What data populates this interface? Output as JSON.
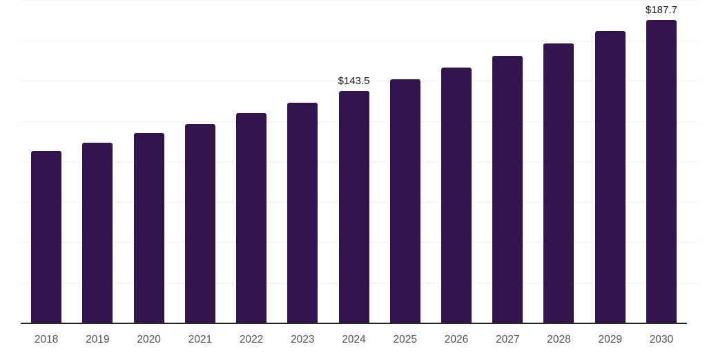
{
  "chart": {
    "background": "#ffffff",
    "bar_color": "#32154d",
    "gridline_color": "#f2f2f2",
    "axis_line_color": "#2a2a2a",
    "tick_label_color": "#515151",
    "value_label_color": "#1a1a1a"
  },
  "chart_data": {
    "type": "bar",
    "categories": [
      "2018",
      "2019",
      "2020",
      "2021",
      "2022",
      "2023",
      "2024",
      "2025",
      "2026",
      "2027",
      "2028",
      "2029",
      "2030"
    ],
    "values": [
      106.4,
      111.6,
      117.7,
      123.2,
      129.8,
      136.4,
      143.5,
      150.9,
      158.2,
      165.5,
      173.2,
      180.7,
      187.7
    ],
    "value_labels": [
      null,
      null,
      null,
      null,
      null,
      null,
      "$143.5",
      null,
      null,
      null,
      null,
      null,
      "$187.7"
    ],
    "title": "",
    "xlabel": "",
    "ylabel": "",
    "ylim": [
      0,
      200
    ],
    "grid_step": 25,
    "grid": true,
    "legend": false,
    "legend_position": "none"
  }
}
